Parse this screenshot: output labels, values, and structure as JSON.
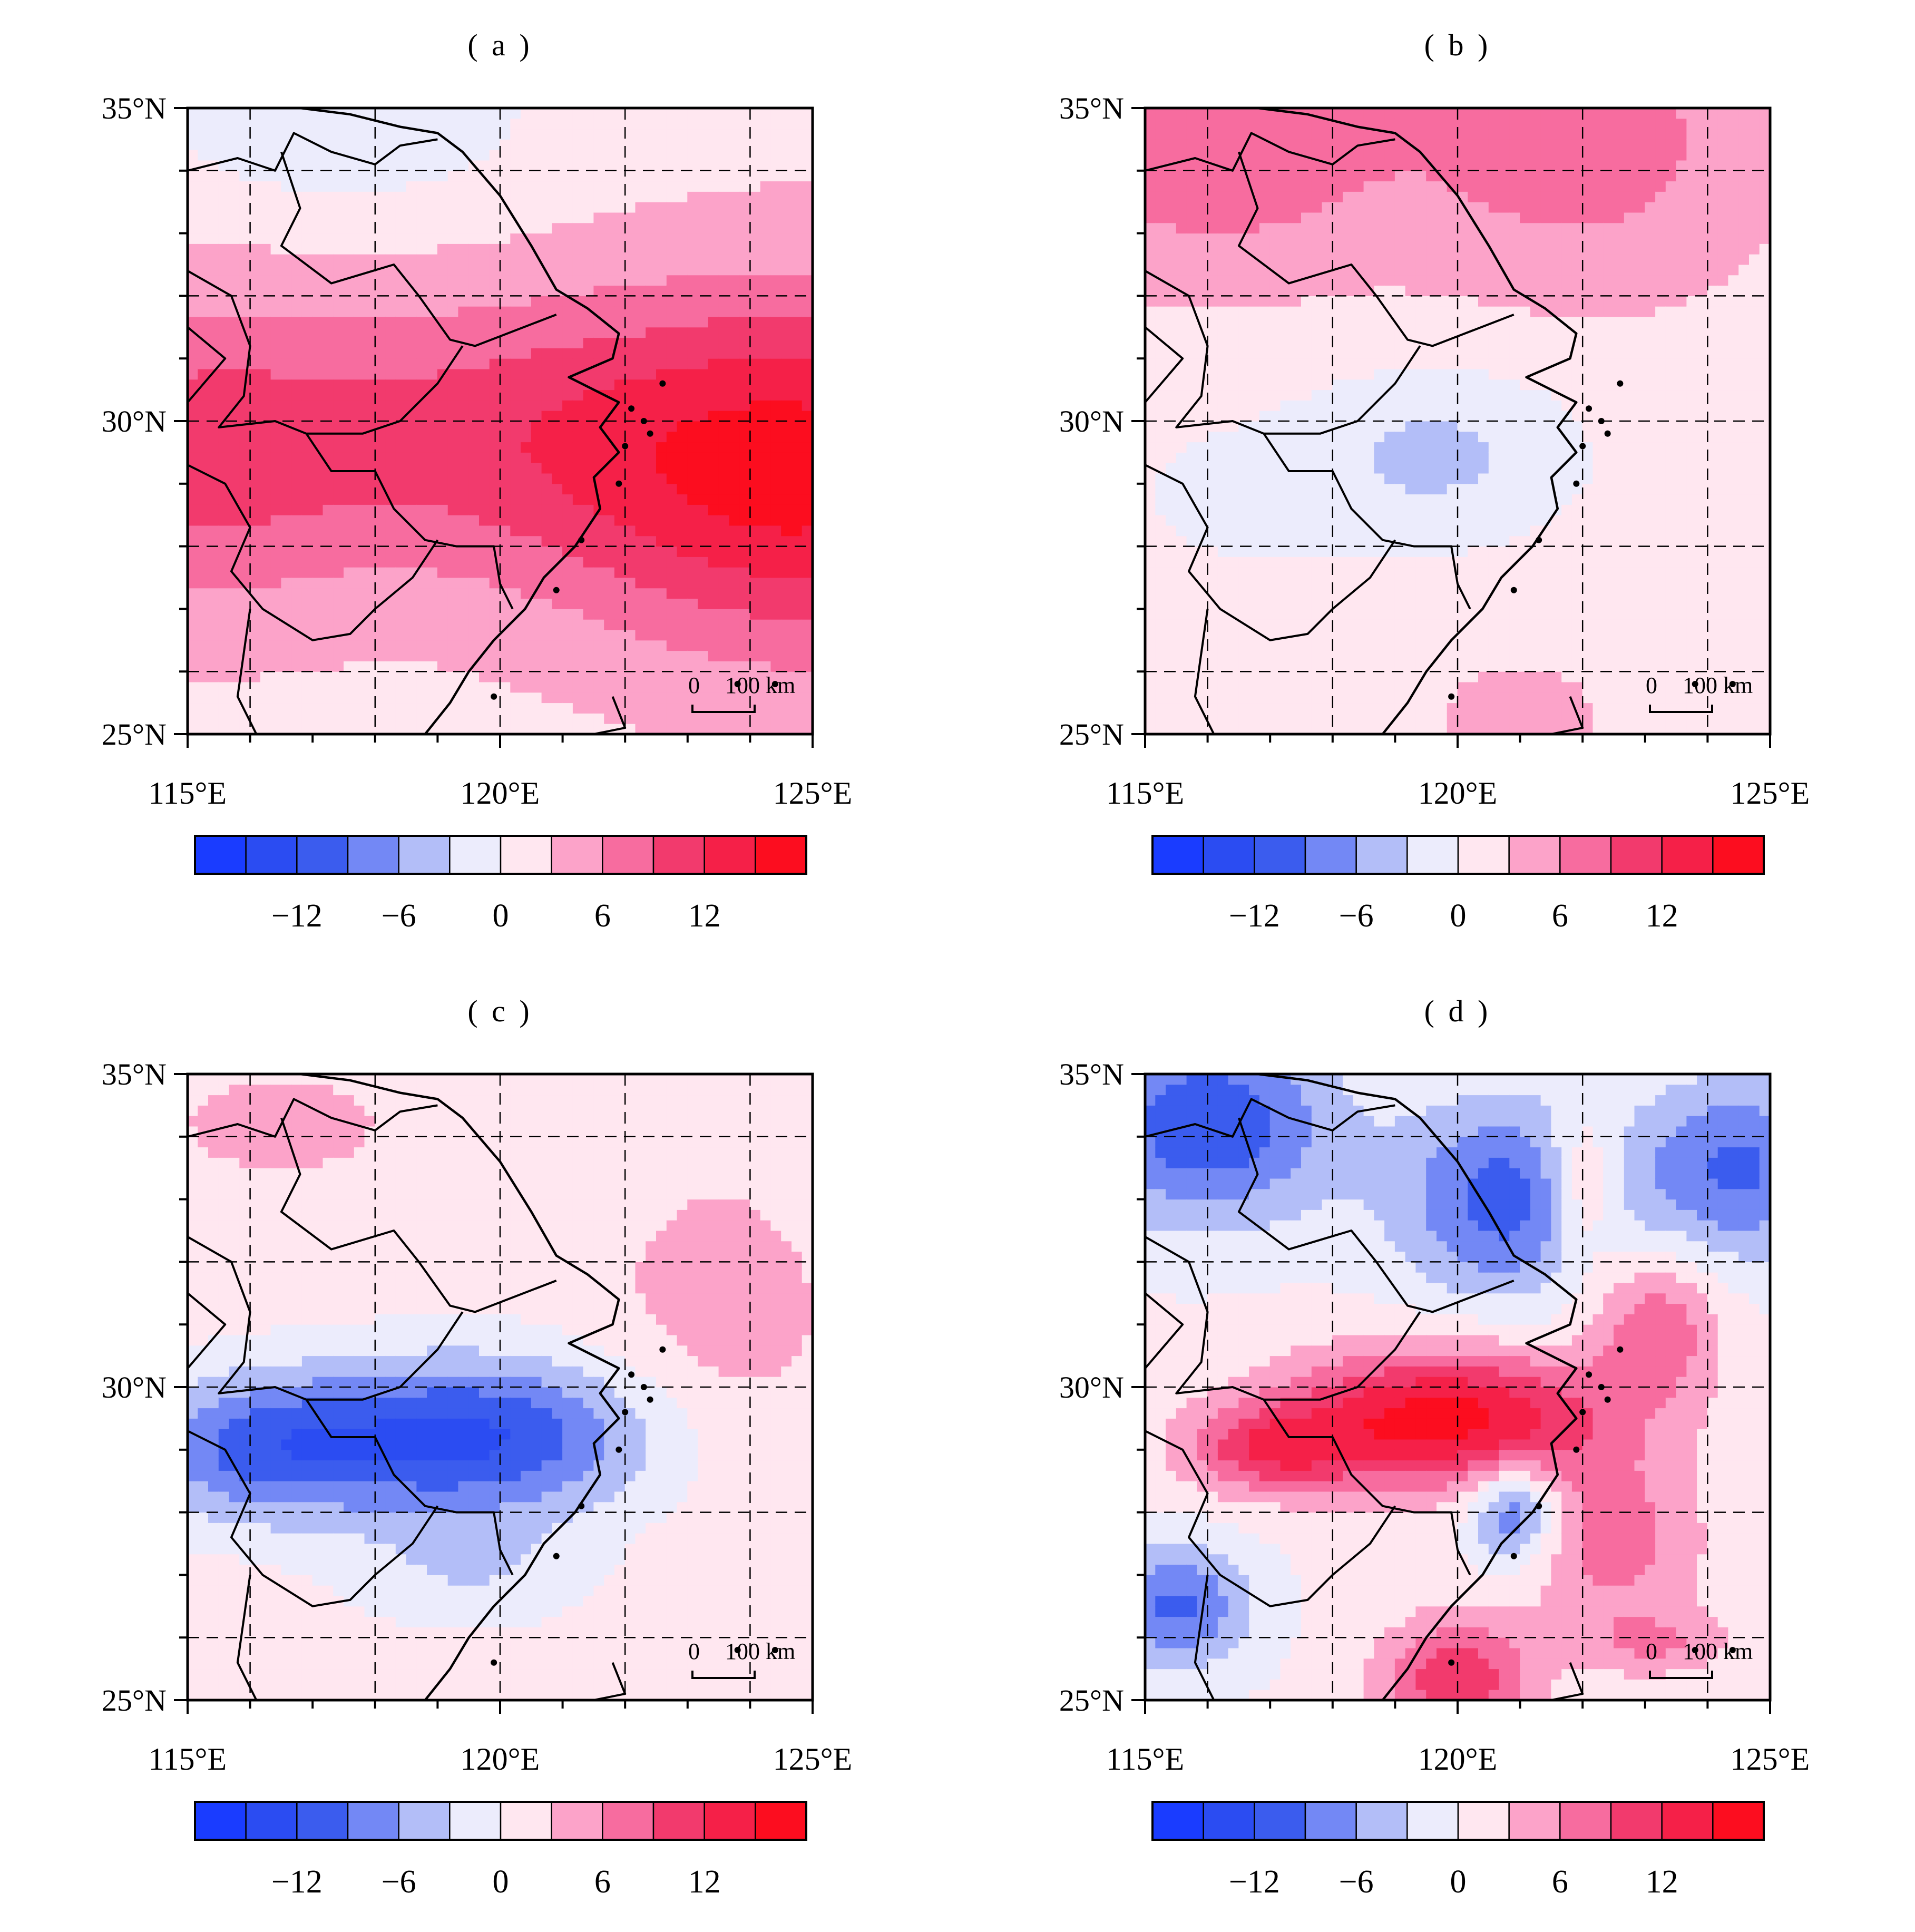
{
  "panels": [
    {
      "id": "a",
      "title": "( a )",
      "pattern": "a"
    },
    {
      "id": "b",
      "title": "( b )",
      "pattern": "b"
    },
    {
      "id": "c",
      "title": "( c )",
      "pattern": "c"
    },
    {
      "id": "d",
      "title": "( d )",
      "pattern": "d"
    }
  ],
  "axes": {
    "lat_labels": [
      "35°N",
      "30°N",
      "25°N"
    ],
    "lat_values": [
      35,
      30,
      25
    ],
    "lon_labels": [
      "115°E",
      "120°E",
      "125°E"
    ],
    "lon_values": [
      115,
      120,
      125
    ],
    "lat_range": [
      25,
      35
    ],
    "lon_range": [
      115,
      125
    ],
    "grid": "dashed"
  },
  "colorbar": {
    "colors": [
      "#1a3cff",
      "#2b4cf2",
      "#3b5cee",
      "#7388f5",
      "#b3bef8",
      "#ececfc",
      "#ffe7f0",
      "#fca3c9",
      "#f76c9f",
      "#f23a6d",
      "#f52048",
      "#fc0d1f"
    ],
    "tick_labels": [
      "-12",
      "-6",
      "0",
      "6",
      "12"
    ],
    "tick_values": [
      -12,
      -6,
      0,
      6,
      12
    ],
    "range": [
      -18,
      18
    ]
  },
  "scalebar": {
    "zero": "0",
    "distance": "100 km"
  }
}
